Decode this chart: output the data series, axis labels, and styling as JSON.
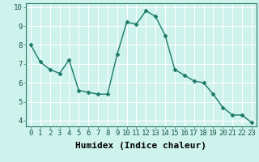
{
  "x": [
    0,
    1,
    2,
    3,
    4,
    5,
    6,
    7,
    8,
    9,
    10,
    11,
    12,
    13,
    14,
    15,
    16,
    17,
    18,
    19,
    20,
    21,
    22,
    23
  ],
  "y": [
    8.0,
    7.1,
    6.7,
    6.5,
    7.2,
    5.6,
    5.5,
    5.4,
    5.4,
    7.5,
    9.2,
    9.1,
    9.8,
    9.5,
    8.5,
    6.7,
    6.4,
    6.1,
    6.0,
    5.4,
    4.7,
    4.3,
    4.3,
    3.9
  ],
  "xlabel": "Humidex (Indice chaleur)",
  "ylim": [
    3.7,
    10.2
  ],
  "xlim": [
    -0.5,
    23.5
  ],
  "yticks": [
    4,
    5,
    6,
    7,
    8,
    9,
    10
  ],
  "xticks": [
    0,
    1,
    2,
    3,
    4,
    5,
    6,
    7,
    8,
    9,
    10,
    11,
    12,
    13,
    14,
    15,
    16,
    17,
    18,
    19,
    20,
    21,
    22,
    23
  ],
  "line_color": "#1a7a68",
  "marker": "D",
  "marker_size": 2.5,
  "bg_color": "#cef2ec",
  "grid_color": "#ffffff",
  "xlabel_fontsize": 8,
  "tick_fontsize": 6.5,
  "line_width": 1.0
}
